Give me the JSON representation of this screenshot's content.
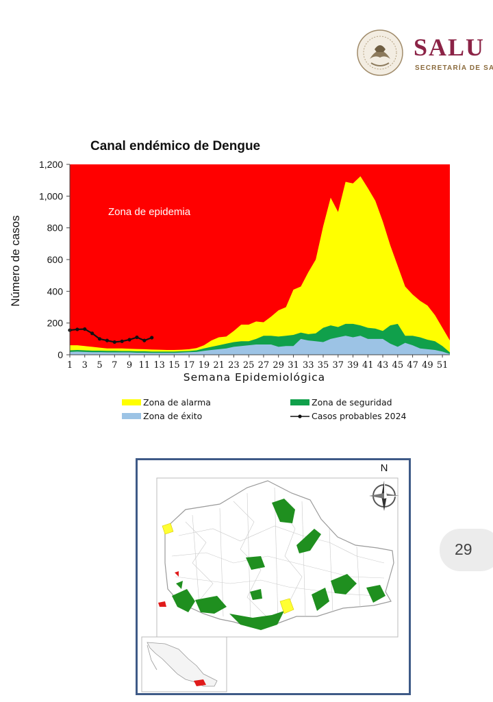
{
  "header": {
    "logo_word": "SALU",
    "logo_sub": "SECRETARÍA DE SAL",
    "seal_icon": "mexican-coat-of-arms-seal-icon"
  },
  "chart_data": {
    "type": "area",
    "title": "Canal endémico de Dengue",
    "xlabel": "Semana Epidemiológica",
    "ylabel": "Número de casos",
    "ylim": [
      0,
      1200
    ],
    "yticks": [
      0,
      200,
      400,
      600,
      800,
      1000,
      1200
    ],
    "ytick_labels": [
      "0",
      "200",
      "400",
      "600",
      "800",
      "1,000",
      "1,200"
    ],
    "xlim": [
      1,
      52
    ],
    "xticks": [
      1,
      3,
      5,
      7,
      9,
      11,
      13,
      15,
      17,
      19,
      21,
      23,
      25,
      27,
      29,
      31,
      33,
      35,
      37,
      39,
      41,
      43,
      45,
      47,
      49,
      51
    ],
    "annotation": "Zona de epidemia",
    "epidemic_zone_color": "#ff0000",
    "series": [
      {
        "name": "Zona de alarma",
        "type": "area",
        "color": "#ffff00",
        "values": [
          60,
          60,
          55,
          50,
          45,
          40,
          40,
          40,
          38,
          36,
          35,
          33,
          32,
          30,
          30,
          32,
          35,
          42,
          60,
          90,
          110,
          115,
          150,
          190,
          190,
          210,
          205,
          240,
          280,
          300,
          410,
          430,
          520,
          600,
          810,
          990,
          900,
          1090,
          1080,
          1125,
          1050,
          970,
          840,
          690,
          560,
          430,
          380,
          340,
          310,
          250,
          170,
          90
        ]
      },
      {
        "name": "Zona de seguridad",
        "type": "area",
        "color": "#10a04b",
        "values": [
          28,
          30,
          28,
          26,
          26,
          25,
          25,
          24,
          24,
          22,
          22,
          20,
          20,
          20,
          20,
          22,
          24,
          28,
          40,
          50,
          60,
          70,
          80,
          85,
          85,
          100,
          120,
          120,
          115,
          120,
          125,
          140,
          130,
          135,
          170,
          185,
          175,
          195,
          195,
          185,
          170,
          165,
          150,
          185,
          195,
          120,
          120,
          110,
          95,
          85,
          55,
          15
        ]
      },
      {
        "name": "Zona de éxito",
        "type": "area",
        "color": "#9cc3e5",
        "values": [
          18,
          20,
          18,
          16,
          16,
          15,
          15,
          15,
          15,
          13,
          13,
          12,
          12,
          12,
          12,
          14,
          16,
          18,
          25,
          30,
          35,
          40,
          50,
          55,
          60,
          65,
          65,
          65,
          50,
          55,
          55,
          100,
          90,
          85,
          80,
          100,
          110,
          120,
          110,
          120,
          100,
          100,
          100,
          70,
          50,
          75,
          60,
          40,
          35,
          30,
          20,
          5
        ]
      },
      {
        "name": "Casos probables 2024",
        "type": "line",
        "color": "#111111",
        "x": [
          1,
          2,
          3,
          4,
          5,
          6,
          7,
          8,
          9,
          10,
          11,
          12
        ],
        "values": [
          155,
          160,
          162,
          135,
          100,
          90,
          80,
          85,
          95,
          110,
          90,
          108
        ]
      }
    ]
  },
  "map": {
    "compass_label": "N",
    "highlight_colors": {
      "seguridad": "#1f8f1f",
      "alarma": "#ffff33",
      "epidemia": "#e01b1b"
    }
  },
  "page": {
    "number": "29"
  }
}
